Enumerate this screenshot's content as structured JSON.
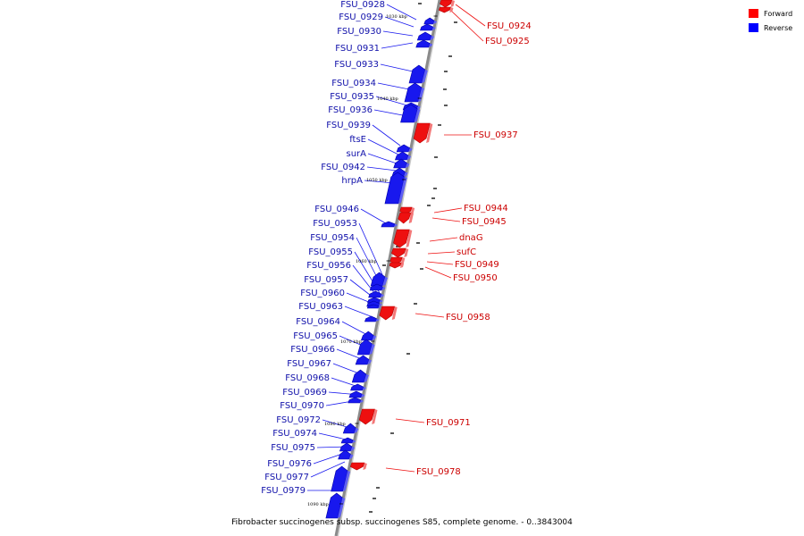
{
  "caption": "Fibrobacter succinogenes subsp. succinogenes S85, complete genome. - 0..3843004",
  "legend": [
    {
      "label": "Forward",
      "color": "#ff0000"
    },
    {
      "label": "Reverse",
      "color": "#0000ff"
    }
  ],
  "colors": {
    "forward": "#ee1010",
    "reverse": "#1818ee",
    "axis": "#8a8a8a"
  },
  "ticks": [
    "1030 kbp",
    "1040 kbp",
    "1050 kbp",
    "1060 kbp",
    "1070 kbp",
    "1080 kbp",
    "1090 kbp"
  ],
  "genes": [
    {
      "name": "FSU_0924",
      "strand": "forward"
    },
    {
      "name": "FSU_0925",
      "strand": "forward"
    },
    {
      "name": "FSU_0928",
      "strand": "reverse"
    },
    {
      "name": "FSU_0929",
      "strand": "reverse"
    },
    {
      "name": "FSU_0930",
      "strand": "reverse"
    },
    {
      "name": "FSU_0931",
      "strand": "reverse"
    },
    {
      "name": "FSU_0933",
      "strand": "reverse"
    },
    {
      "name": "FSU_0934",
      "strand": "reverse"
    },
    {
      "name": "FSU_0935",
      "strand": "reverse"
    },
    {
      "name": "FSU_0936",
      "strand": "reverse"
    },
    {
      "name": "FSU_0937",
      "strand": "forward"
    },
    {
      "name": "FSU_0939",
      "strand": "reverse"
    },
    {
      "name": "ftsE",
      "strand": "reverse"
    },
    {
      "name": "surA",
      "strand": "reverse"
    },
    {
      "name": "FSU_0942",
      "strand": "reverse"
    },
    {
      "name": "hrpA",
      "strand": "reverse"
    },
    {
      "name": "FSU_0944",
      "strand": "forward"
    },
    {
      "name": "FSU_0945",
      "strand": "forward"
    },
    {
      "name": "FSU_0946",
      "strand": "reverse"
    },
    {
      "name": "dnaG",
      "strand": "forward"
    },
    {
      "name": "FSU_0953",
      "strand": "reverse"
    },
    {
      "name": "FSU_0954",
      "strand": "reverse"
    },
    {
      "name": "sufC",
      "strand": "forward"
    },
    {
      "name": "FSU_0955",
      "strand": "reverse"
    },
    {
      "name": "FSU_0949",
      "strand": "forward"
    },
    {
      "name": "FSU_0956",
      "strand": "reverse"
    },
    {
      "name": "FSU_0950",
      "strand": "forward"
    },
    {
      "name": "FSU_0957",
      "strand": "reverse"
    },
    {
      "name": "FSU_0960",
      "strand": "reverse"
    },
    {
      "name": "FSU_0963",
      "strand": "reverse"
    },
    {
      "name": "FSU_0958",
      "strand": "forward"
    },
    {
      "name": "FSU_0964",
      "strand": "reverse"
    },
    {
      "name": "FSU_0965",
      "strand": "reverse"
    },
    {
      "name": "FSU_0966",
      "strand": "reverse"
    },
    {
      "name": "FSU_0967",
      "strand": "reverse"
    },
    {
      "name": "FSU_0968",
      "strand": "reverse"
    },
    {
      "name": "FSU_0969",
      "strand": "reverse"
    },
    {
      "name": "FSU_0970",
      "strand": "reverse"
    },
    {
      "name": "FSU_0972",
      "strand": "reverse"
    },
    {
      "name": "FSU_0971",
      "strand": "forward"
    },
    {
      "name": "FSU_0974",
      "strand": "reverse"
    },
    {
      "name": "FSU_0975",
      "strand": "reverse"
    },
    {
      "name": "FSU_0976",
      "strand": "reverse"
    },
    {
      "name": "FSU_0978",
      "strand": "forward"
    },
    {
      "name": "FSU_0977",
      "strand": "reverse"
    },
    {
      "name": "FSU_0979",
      "strand": "reverse"
    }
  ]
}
